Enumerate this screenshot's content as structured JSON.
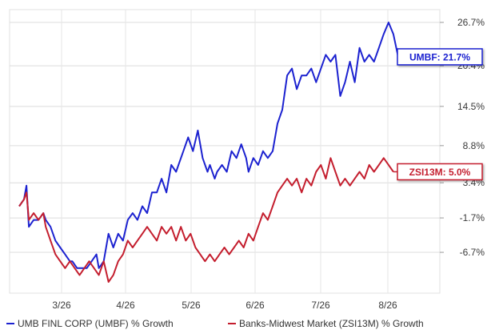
{
  "chart_data": {
    "type": "line",
    "x_ticks": [
      "3/26",
      "4/26",
      "5/26",
      "6/26",
      "7/26",
      "8/26"
    ],
    "y_ticks": [
      "26.7%",
      "20.4%",
      "14.5%",
      "8.8%",
      "3.4%",
      "-1.7%",
      "-6.7%"
    ],
    "y_tick_values": [
      26.7,
      20.4,
      14.5,
      8.8,
      3.4,
      -1.7,
      -6.7
    ],
    "ylim": [
      -11,
      28.5
    ],
    "xlim": [
      0,
      161
    ],
    "grid": true,
    "legend_placement": "bottom",
    "series": [
      {
        "name": "UMB FINL CORP (UMBF) % Growth",
        "color": "#1c22d0",
        "callout": "UMBF: 21.7%",
        "values": [
          [
            0,
            0
          ],
          [
            2,
            1
          ],
          [
            3,
            3
          ],
          [
            4,
            -3
          ],
          [
            6,
            -2
          ],
          [
            8,
            -2
          ],
          [
            10,
            -1
          ],
          [
            11,
            -2
          ],
          [
            13,
            -3
          ],
          [
            15,
            -5
          ],
          [
            17,
            -6
          ],
          [
            19,
            -7
          ],
          [
            21,
            -8
          ],
          [
            22,
            -8
          ],
          [
            24,
            -9
          ],
          [
            26,
            -9
          ],
          [
            28,
            -9
          ],
          [
            30,
            -8
          ],
          [
            32,
            -7
          ],
          [
            33,
            -9
          ],
          [
            35,
            -8
          ],
          [
            37,
            -4
          ],
          [
            39,
            -6
          ],
          [
            41,
            -4
          ],
          [
            43,
            -5
          ],
          [
            45,
            -2
          ],
          [
            47,
            -1
          ],
          [
            49,
            -2
          ],
          [
            51,
            0
          ],
          [
            53,
            -1
          ],
          [
            55,
            2
          ],
          [
            57,
            2
          ],
          [
            59,
            4
          ],
          [
            61,
            2
          ],
          [
            63,
            6
          ],
          [
            65,
            5
          ],
          [
            66,
            6
          ],
          [
            68,
            8
          ],
          [
            70,
            10
          ],
          [
            72,
            8
          ],
          [
            74,
            11
          ],
          [
            76,
            7
          ],
          [
            78,
            5
          ],
          [
            79,
            6
          ],
          [
            81,
            4
          ],
          [
            82,
            5
          ],
          [
            84,
            6
          ],
          [
            86,
            5
          ],
          [
            88,
            8
          ],
          [
            90,
            7
          ],
          [
            92,
            9
          ],
          [
            94,
            7
          ],
          [
            95,
            5
          ],
          [
            97,
            7
          ],
          [
            99,
            6
          ],
          [
            101,
            8
          ],
          [
            103,
            7
          ],
          [
            105,
            8
          ],
          [
            107,
            12
          ],
          [
            109,
            14
          ],
          [
            111,
            19
          ],
          [
            113,
            20
          ],
          [
            115,
            17
          ],
          [
            117,
            19
          ],
          [
            119,
            19
          ],
          [
            121,
            20
          ],
          [
            123,
            18
          ],
          [
            125,
            20
          ],
          [
            127,
            22
          ],
          [
            129,
            21
          ],
          [
            131,
            22
          ],
          [
            133,
            16
          ],
          [
            135,
            18
          ],
          [
            137,
            21
          ],
          [
            139,
            18
          ],
          [
            141,
            23
          ],
          [
            143,
            21
          ],
          [
            145,
            22
          ],
          [
            147,
            21
          ],
          [
            149,
            23
          ],
          [
            151,
            25
          ],
          [
            153,
            26.7
          ],
          [
            155,
            25
          ],
          [
            157,
            21.7
          ]
        ]
      },
      {
        "name": "Banks-Midwest Market (ZSI13M) % Growth",
        "color": "#c41e2e",
        "callout": "ZSI13M: 5.0%",
        "values": [
          [
            0,
            0
          ],
          [
            2,
            1
          ],
          [
            3,
            2
          ],
          [
            4,
            -2
          ],
          [
            6,
            -1
          ],
          [
            8,
            -2
          ],
          [
            10,
            -1
          ],
          [
            11,
            -3
          ],
          [
            13,
            -5
          ],
          [
            15,
            -7
          ],
          [
            17,
            -8
          ],
          [
            19,
            -9
          ],
          [
            21,
            -8
          ],
          [
            23,
            -9
          ],
          [
            25,
            -10
          ],
          [
            27,
            -9
          ],
          [
            29,
            -8
          ],
          [
            31,
            -9
          ],
          [
            33,
            -10
          ],
          [
            35,
            -8
          ],
          [
            37,
            -11
          ],
          [
            39,
            -10
          ],
          [
            41,
            -8
          ],
          [
            43,
            -7
          ],
          [
            45,
            -5
          ],
          [
            47,
            -6
          ],
          [
            49,
            -5
          ],
          [
            51,
            -4
          ],
          [
            53,
            -3
          ],
          [
            55,
            -4
          ],
          [
            57,
            -5
          ],
          [
            59,
            -3
          ],
          [
            61,
            -4
          ],
          [
            63,
            -3
          ],
          [
            65,
            -5
          ],
          [
            67,
            -3
          ],
          [
            69,
            -5
          ],
          [
            71,
            -4
          ],
          [
            73,
            -6
          ],
          [
            75,
            -7
          ],
          [
            77,
            -8
          ],
          [
            79,
            -7
          ],
          [
            81,
            -8
          ],
          [
            83,
            -7
          ],
          [
            85,
            -6
          ],
          [
            87,
            -7
          ],
          [
            89,
            -6
          ],
          [
            91,
            -5
          ],
          [
            93,
            -6
          ],
          [
            95,
            -4
          ],
          [
            97,
            -5
          ],
          [
            99,
            -3
          ],
          [
            101,
            -1
          ],
          [
            103,
            -2
          ],
          [
            105,
            0
          ],
          [
            107,
            2
          ],
          [
            109,
            3
          ],
          [
            111,
            4
          ],
          [
            113,
            3
          ],
          [
            115,
            4
          ],
          [
            117,
            2
          ],
          [
            119,
            4
          ],
          [
            121,
            3
          ],
          [
            123,
            5
          ],
          [
            125,
            6
          ],
          [
            127,
            4
          ],
          [
            129,
            7
          ],
          [
            131,
            5
          ],
          [
            133,
            3
          ],
          [
            135,
            4
          ],
          [
            137,
            3
          ],
          [
            139,
            4
          ],
          [
            141,
            5
          ],
          [
            143,
            4
          ],
          [
            145,
            6
          ],
          [
            147,
            5
          ],
          [
            149,
            6
          ],
          [
            151,
            7
          ],
          [
            153,
            6
          ],
          [
            155,
            5
          ]
        ]
      }
    ]
  }
}
